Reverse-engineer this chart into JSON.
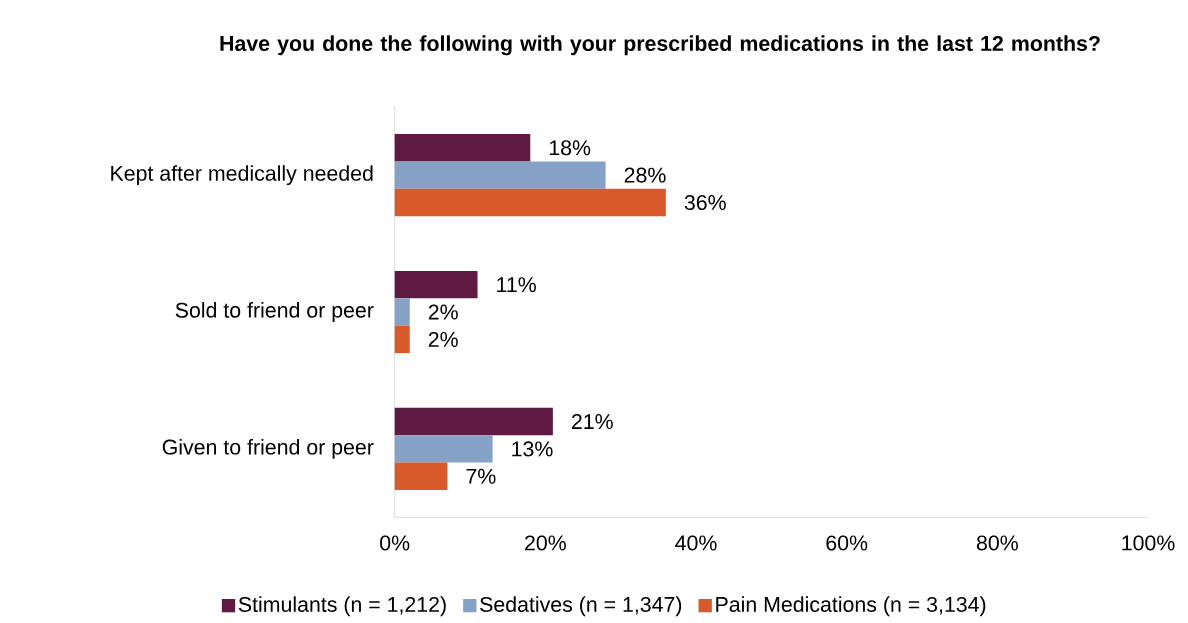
{
  "chart_data": {
    "type": "bar",
    "orientation": "horizontal",
    "title": "Have you done the following with your prescribed medications in the last 12 months?",
    "categories": [
      "Kept after medically needed",
      "Sold to friend or peer",
      "Given to friend or peer"
    ],
    "series": [
      {
        "name": "Stimulants (n = 1,212)",
        "color": "#5e1a40",
        "values": [
          18,
          11,
          21
        ],
        "value_labels": [
          "18%",
          "11%",
          "21%"
        ]
      },
      {
        "name": "Sedatives (n = 1,347)",
        "color": "#86a1c6",
        "values": [
          28,
          2,
          13
        ],
        "value_labels": [
          "28%",
          "2%",
          "13%"
        ]
      },
      {
        "name": "Pain Medications (n = 3,134)",
        "color": "#d85a2a",
        "values": [
          36,
          2,
          7
        ],
        "value_labels": [
          "36%",
          "2%",
          "7%"
        ]
      }
    ],
    "xlim": [
      0,
      100
    ],
    "xticks": [
      {
        "value": 0,
        "label": "0%"
      },
      {
        "value": 20,
        "label": "20%"
      },
      {
        "value": 40,
        "label": "40%"
      },
      {
        "value": 60,
        "label": "60%"
      },
      {
        "value": 80,
        "label": "80%"
      },
      {
        "value": 100,
        "label": "100%"
      }
    ],
    "legend": "bottom"
  }
}
